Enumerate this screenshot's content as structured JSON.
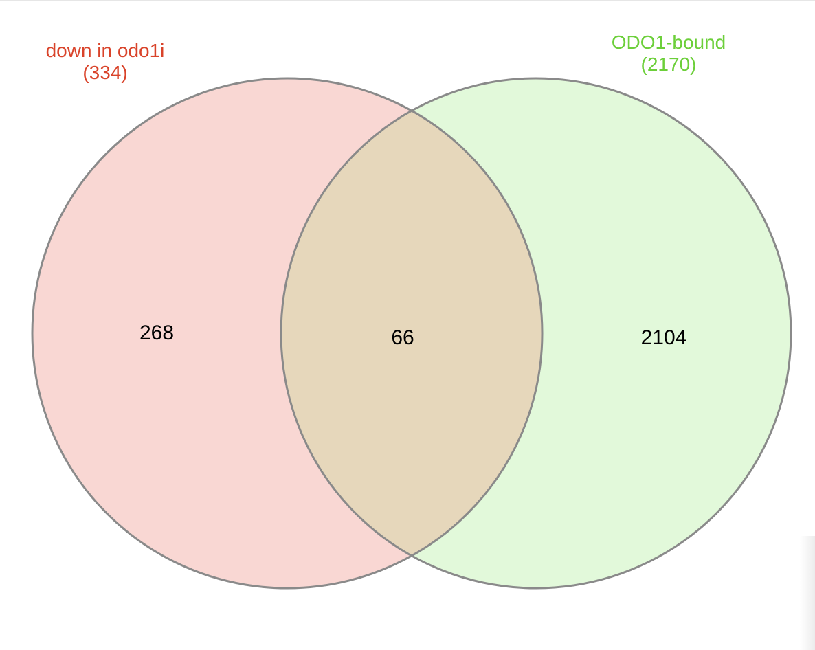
{
  "sets": [
    {
      "name": "down in odo1i",
      "total": "(334)",
      "color": "#d9432a",
      "fill": "#f9d7d3"
    },
    {
      "name": "ODO1-bound",
      "total": "(2170)",
      "color": "#6ccf3a",
      "fill": "#e2f9da"
    }
  ],
  "regions": {
    "left_only": "268",
    "overlap": "66",
    "right_only": "2104"
  },
  "colors": {
    "overlap_fill": "#e6d7bb",
    "outline": "#8a8a8a"
  }
}
